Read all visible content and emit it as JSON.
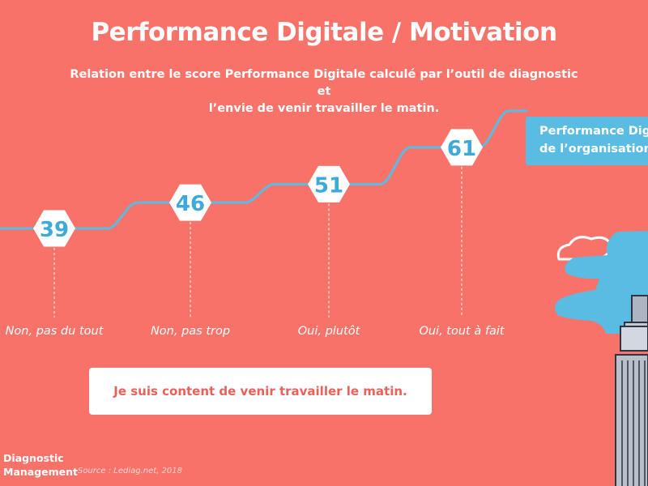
{
  "header": {
    "title": "Performance Digitale / Motivation",
    "subtitle_line1": "Relation entre le score Performance Digitale calculé par l’outil de diagnostic et",
    "subtitle_line2": "l’envie de venir travailler le matin."
  },
  "chart_data": {
    "type": "line",
    "categories": [
      "Non, pas du tout",
      "Non, pas trop",
      "Oui, plutôt",
      "Oui, tout à fait"
    ],
    "series": [
      {
        "name": "Performance Digitale de l’organisation",
        "values": [
          39,
          46,
          51,
          61
        ]
      }
    ],
    "data_labels": [
      "39",
      "46",
      "51",
      "61"
    ],
    "xlabel": "Je suis content de venir travailler le matin.",
    "ylabel": "",
    "legend_line1": "Performance Digi",
    "legend_line2": "de l’organisation",
    "legend_position": "top-right",
    "grid": false
  },
  "footer": {
    "brand_line1": "Diagnostic",
    "brand_line2": "Management",
    "source": "Source : Lediag.net, 2018"
  },
  "colors": {
    "background": "#F7736A",
    "line": "#5BBCE3",
    "marker_fill": "#FFFFFF",
    "marker_text": "#3FA9D8",
    "axis_label_text": "#E9615A",
    "sky": "#5BBCE3",
    "building": "#B9C0CC"
  },
  "illustration": {
    "icons": [
      "cloud-icon",
      "skyscraper-illustration"
    ]
  }
}
